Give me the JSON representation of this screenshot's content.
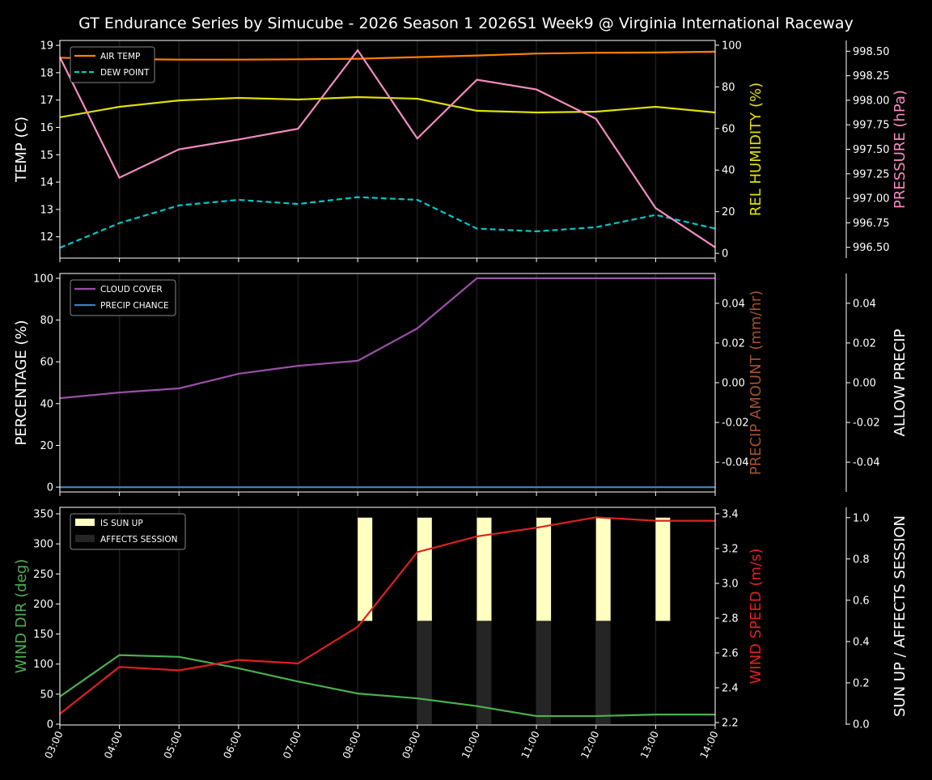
{
  "chart_data": {
    "title": "GT Endurance Series by Simucube - 2026 Season 1 2026S1 Week9 @ Virginia International Raceway",
    "x": [
      "03:00",
      "04:00",
      "05:00",
      "06:00",
      "07:00",
      "08:00",
      "09:00",
      "10:00",
      "11:00",
      "12:00",
      "13:00",
      "14:00"
    ],
    "panels": [
      {
        "type": "line",
        "grid": "vertical",
        "legend": "top-left",
        "axes": [
          {
            "side": "left",
            "label": "TEMP (C)",
            "color": "#ffffff",
            "range": [
              11.22,
              19.18
            ],
            "ticks": [
              12,
              13,
              14,
              15,
              16,
              17,
              18,
              19
            ],
            "fmt": 0
          },
          {
            "side": "right",
            "label": "REL HUMIDITY (%)",
            "color": "#e0e000",
            "range": [
              -2.3,
              102.3
            ],
            "ticks": [
              0,
              20,
              40,
              60,
              80,
              100
            ],
            "fmt": 0
          },
          {
            "side": "far",
            "label": "PRESSURE (hPa)",
            "color": "#f48cc0",
            "range": [
              996.39,
              998.61
            ],
            "ticks": [
              996.5,
              996.75,
              997.0,
              997.25,
              997.5,
              997.75,
              998.0,
              998.25,
              998.5
            ],
            "fmt": 2
          }
        ],
        "series": [
          {
            "name": "AIR TEMP",
            "axis": 0,
            "color": "#ff8000",
            "dash": false,
            "legend": true,
            "values": [
              18.55,
              18.5,
              18.48,
              18.48,
              18.49,
              18.51,
              18.57,
              18.63,
              18.7,
              18.73,
              18.74,
              18.77
            ]
          },
          {
            "name": "DEW POINT",
            "axis": 0,
            "color": "#00c8c8",
            "dash": true,
            "legend": true,
            "values": [
              11.6,
              12.5,
              13.15,
              13.35,
              13.2,
              13.45,
              13.35,
              12.3,
              12.2,
              12.35,
              12.8,
              12.3
            ]
          },
          {
            "axis": 1,
            "color": "#e0e000",
            "dash": false,
            "legend": false,
            "values": [
              65.4,
              70.4,
              73.5,
              74.7,
              73.9,
              75.1,
              74.3,
              68.5,
              67.7,
              68.1,
              70.4,
              67.7
            ]
          },
          {
            "axis": 2,
            "color": "#f48cc0",
            "dash": false,
            "legend": false,
            "values": [
              998.44,
              997.21,
              997.5,
              997.6,
              997.71,
              998.51,
              997.61,
              998.21,
              998.11,
              997.81,
              996.9,
              996.5
            ]
          }
        ]
      },
      {
        "type": "line",
        "grid": "vertical",
        "legend": "top-left",
        "axes": [
          {
            "side": "left",
            "label": "PERCENTAGE (%)",
            "color": "#ffffff",
            "range": [
              -2.3,
              102.3
            ],
            "ticks": [
              0,
              20,
              40,
              60,
              80,
              100
            ],
            "fmt": 0
          },
          {
            "side": "right",
            "label": "PRECIP AMOUNT (mm/hr)",
            "color": "#a0522d",
            "range": [
              -0.055,
              0.055
            ],
            "ticks": [
              -0.04,
              -0.02,
              0.0,
              0.02,
              0.04
            ],
            "fmt": 2
          },
          {
            "side": "far",
            "label": "ALLOW PRECIP",
            "color": "#ffffff",
            "range": [
              -0.055,
              0.055
            ],
            "ticks": [
              -0.04,
              -0.02,
              0.0,
              0.02,
              0.04
            ],
            "fmt": 2
          }
        ],
        "series": [
          {
            "name": "CLOUD COVER",
            "axis": 0,
            "color": "#9b4fa8",
            "dash": false,
            "legend": true,
            "values": [
              42.6,
              45.3,
              47.3,
              54.3,
              58.1,
              60.5,
              76,
              100,
              100,
              100,
              100,
              100
            ]
          },
          {
            "name": "PRECIP CHANCE",
            "axis": 0,
            "color": "#3f7fc0",
            "dash": false,
            "legend": true,
            "values": [
              0,
              0,
              0,
              0,
              0,
              0,
              0,
              0,
              0,
              0,
              0,
              0
            ]
          }
        ]
      },
      {
        "type": "line+bar",
        "grid": "vertical",
        "legend": "top-left",
        "axes": [
          {
            "side": "left",
            "label": "WIND DIR (deg)",
            "color": "#4caf50",
            "range": [
              -1.3,
              360.8
            ],
            "ticks": [
              0,
              50,
              100,
              150,
              200,
              250,
              300,
              350
            ],
            "fmt": 0
          },
          {
            "side": "right",
            "label": "WIND SPEED (m/s)",
            "color": "#e02020",
            "range": [
              2.186,
              3.437
            ],
            "ticks": [
              2.2,
              2.4,
              2.6,
              2.8,
              3.0,
              3.2,
              3.4
            ],
            "fmt": 1
          },
          {
            "side": "far",
            "label": "SUN UP / AFFECTS SESSION",
            "color": "#ffffff",
            "range": [
              -0.004,
              1.05
            ],
            "ticks": [
              0.0,
              0.2,
              0.4,
              0.6,
              0.8,
              1.0
            ],
            "fmt": 1
          }
        ],
        "bars": [
          {
            "name": "IS SUN UP",
            "axis": 2,
            "color": "#ffffc0",
            "base": 0.5,
            "height": 0.5,
            "values": [
              0,
              0,
              0,
              0,
              0,
              1,
              1,
              1,
              1,
              1,
              1,
              0
            ]
          },
          {
            "name": "AFFECTS SESSION",
            "axis": 2,
            "color": "#252525",
            "base": 0,
            "height": 0.5,
            "values": [
              0,
              0,
              0,
              0,
              0,
              0,
              1,
              1,
              1,
              1,
              0,
              0
            ]
          }
        ],
        "series": [
          {
            "axis": 0,
            "color": "#4caf50",
            "dash": false,
            "legend": false,
            "values": [
              46,
              115,
              112,
              93,
              71,
              51,
              43,
              30,
              13.5,
              13.5,
              16,
              16
            ]
          },
          {
            "axis": 1,
            "color": "#e02020",
            "dash": false,
            "legend": false,
            "values": [
              2.25,
              2.52,
              2.5,
              2.56,
              2.54,
              2.75,
              3.18,
              3.27,
              3.32,
              3.38,
              3.36,
              3.36
            ]
          }
        ]
      }
    ]
  }
}
